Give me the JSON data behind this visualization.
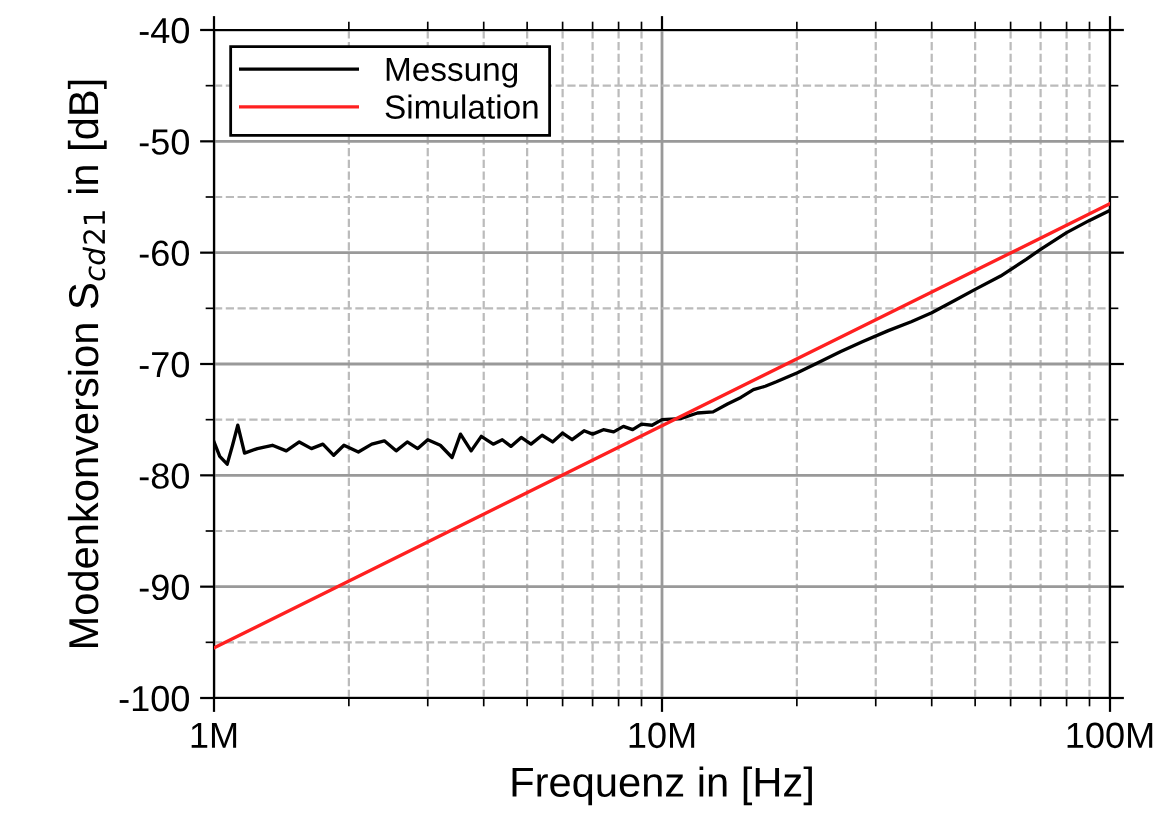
{
  "chart_data": {
    "type": "line",
    "xlabel": "Frequenz in [Hz]",
    "ylabel": "Modenkonversion S$_{cd}$$_{21}$ in [dB]",
    "log": "x",
    "xlim": [
      1000000.0,
      100000000.0
    ],
    "xticks": [
      {
        "value": 1000000.0,
        "label": "1M"
      },
      {
        "value": 10000000.0,
        "label": "10M"
      },
      {
        "value": 100000000.0,
        "label": "100M"
      }
    ],
    "ylim": [
      -100,
      -40
    ],
    "yticks": [
      -100,
      -90,
      -80,
      -70,
      -60,
      -50,
      -40
    ],
    "grid": true,
    "legend": "top left",
    "line_style": "solid",
    "marker": "none",
    "series": [
      {
        "name": "Messung",
        "color": "#000000",
        "x": [
          1000000.0,
          1030000.0,
          1070000.0,
          1100000.0,
          1130000.0,
          1170000.0,
          1250000.0,
          1350000.0,
          1450000.0,
          1550000.0,
          1650000.0,
          1750000.0,
          1850000.0,
          1950000.0,
          2100000.0,
          2250000.0,
          2400000.0,
          2550000.0,
          2700000.0,
          2850000.0,
          3000000.0,
          3200000.0,
          3400000.0,
          3550000.0,
          3750000.0,
          3950000.0,
          4200000.0,
          4400000.0,
          4600000.0,
          4850000.0,
          5100000.0,
          5400000.0,
          5700000.0,
          6000000.0,
          6300000.0,
          6700000.0,
          7000000.0,
          7400000.0,
          7800000.0,
          8200000.0,
          8600000.0,
          9000000.0,
          9500000.0,
          10000000.0,
          11000000.0,
          12000000.0,
          13000000.0,
          14000000.0,
          15000000.0,
          16000000.0,
          17000000.0,
          18000000.0,
          20000000.0,
          22000000.0,
          25000000.0,
          28000000.0,
          32000000.0,
          36000000.0,
          40000000.0,
          45000000.0,
          50000000.0,
          57000000.0,
          65000000.0,
          70000000.0,
          80000000.0,
          90000000.0,
          100000000.0
        ],
        "values": [
          -77,
          -78.3,
          -79,
          -77.3,
          -75.5,
          -78,
          -77.6,
          -77.3,
          -77.8,
          -77.0,
          -77.6,
          -77.2,
          -78.2,
          -77.3,
          -77.9,
          -77.2,
          -76.9,
          -77.8,
          -77.0,
          -77.6,
          -76.8,
          -77.3,
          -78.4,
          -76.3,
          -77.8,
          -76.5,
          -77.2,
          -76.8,
          -77.4,
          -76.6,
          -77.2,
          -76.4,
          -77.0,
          -76.2,
          -76.8,
          -76.0,
          -76.3,
          -75.9,
          -76.1,
          -75.6,
          -75.9,
          -75.4,
          -75.5,
          -75.0,
          -74.9,
          -74.4,
          -74.3,
          -73.6,
          -73.0,
          -72.3,
          -72.0,
          -71.6,
          -70.8,
          -70.0,
          -68.9,
          -68.0,
          -67.0,
          -66.2,
          -65.4,
          -64.3,
          -63.3,
          -62.1,
          -60.6,
          -59.7,
          -58.2,
          -57.1,
          -56.2
        ]
      },
      {
        "name": "Simulation",
        "color": "#ff2020",
        "x": [
          1000000.0,
          100000000.0
        ],
        "values": [
          -95.5,
          -55.6
        ]
      }
    ]
  }
}
